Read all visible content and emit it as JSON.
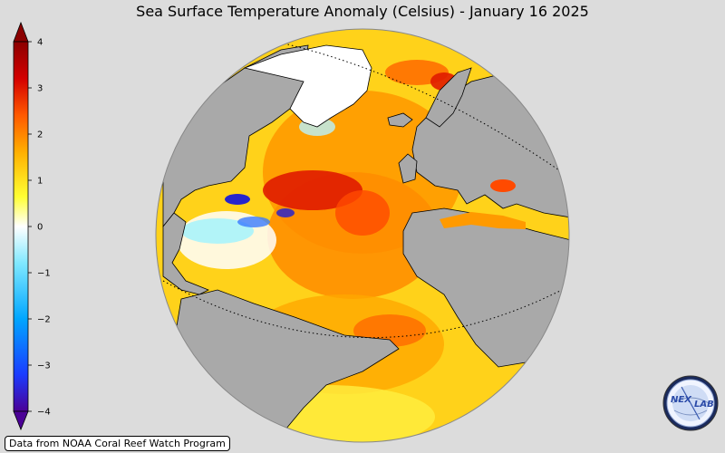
{
  "title": "Sea Surface Temperature Anomaly (Celsius) - January 16 2025",
  "colorbar": {
    "min": -4,
    "max": 4,
    "ticks": [
      {
        "value": 4,
        "label": "4"
      },
      {
        "value": 3,
        "label": "3"
      },
      {
        "value": 2,
        "label": "2"
      },
      {
        "value": 1,
        "label": "1"
      },
      {
        "value": 0,
        "label": "0"
      },
      {
        "value": -1,
        "label": "−1"
      },
      {
        "value": -2,
        "label": "−2"
      },
      {
        "value": -3,
        "label": "−3"
      },
      {
        "value": -4,
        "label": "−4"
      }
    ],
    "colors": [
      "#4b0096",
      "#1a3cff",
      "#00a6ff",
      "#7fe8ff",
      "#ffffff",
      "#ffff33",
      "#ffb000",
      "#ff5a00",
      "#d40000",
      "#8b0000"
    ]
  },
  "map": {
    "projection": "orthographic globe",
    "land_color": "#a9a9a9",
    "ocean_anomaly_dominant": "warm",
    "ice_color": "#ffffff"
  },
  "credit": "Data from NOAA Coral Reef Watch Program",
  "logo": {
    "icon": "nexlab-globe-logo",
    "text_left": "NEX",
    "text_right": "LAB"
  }
}
